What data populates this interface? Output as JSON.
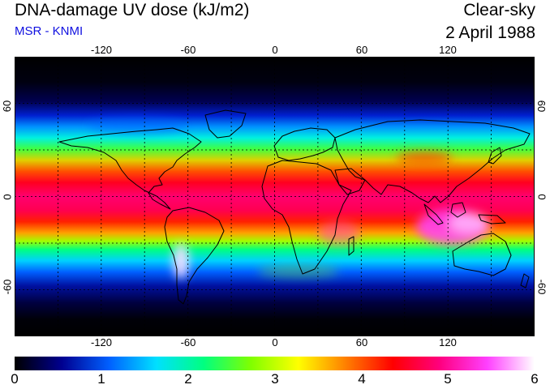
{
  "header": {
    "title": "DNA-damage UV dose (kJ/m2)",
    "source": "MSR - KNMI",
    "condition": "Clear-sky",
    "date": "2 April 1988"
  },
  "map": {
    "projection": "equirectangular",
    "lon_range": [
      -180,
      180
    ],
    "lat_range": [
      -90,
      90
    ],
    "grid": true,
    "lon_ticks": [
      "-120",
      "-60",
      "0",
      "60",
      "120"
    ],
    "lat_ticks_left": [
      "60",
      "0",
      "-60"
    ],
    "lat_ticks_right": [
      "60",
      "0",
      "-60"
    ],
    "colors": {
      "frame": "#000000",
      "coastline": "#000000",
      "grid": "#000000"
    }
  },
  "colorbar": {
    "labels": [
      "0",
      "1",
      "2",
      "3",
      "4",
      "5",
      "6"
    ],
    "range": [
      0,
      6
    ],
    "stops": [
      "#000000",
      "#000090",
      "#0060ff",
      "#00e0ff",
      "#00ff80",
      "#80ff00",
      "#ffff00",
      "#ff8000",
      "#ff0000",
      "#ff0080",
      "#ff40ff",
      "#ffffff"
    ]
  }
}
